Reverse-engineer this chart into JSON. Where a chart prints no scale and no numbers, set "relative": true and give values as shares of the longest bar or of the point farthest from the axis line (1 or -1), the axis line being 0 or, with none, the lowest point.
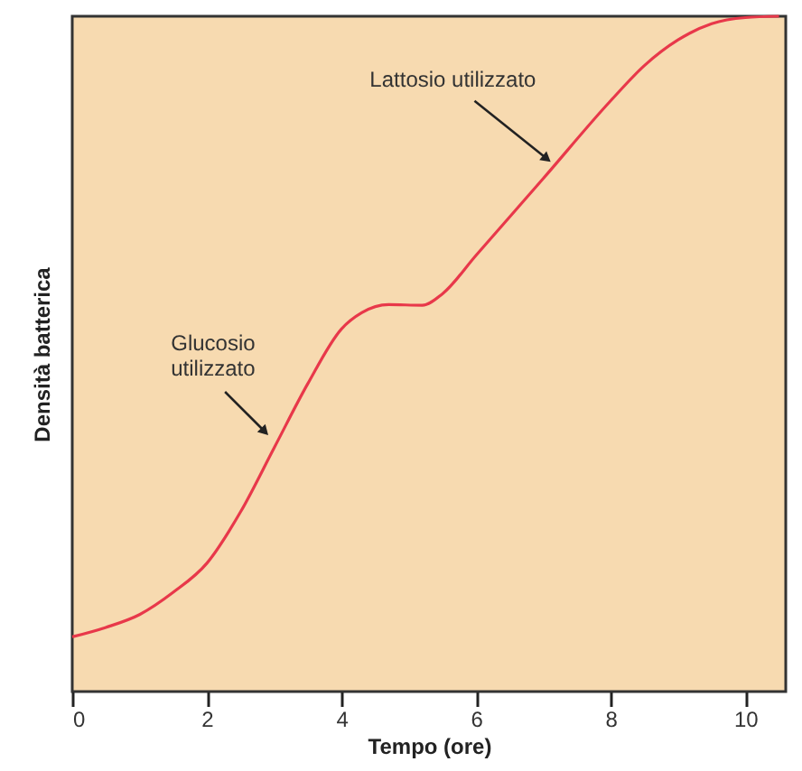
{
  "chart_data": {
    "type": "line",
    "relative": true,
    "xlabel": "Tempo (ore)",
    "ylabel": "Densità batterica",
    "x": [
      0,
      0.5,
      1,
      1.5,
      2,
      2.5,
      3,
      3.5,
      4,
      4.3,
      4.7,
      5.2,
      5.5,
      6,
      7,
      8,
      8.5,
      9,
      9.5,
      10,
      10.5
    ],
    "series": [
      {
        "color": "#e8384a",
        "values": [
          0.081,
          0.095,
          0.114,
          0.147,
          0.19,
          0.266,
          0.361,
          0.456,
          0.537,
          0.561,
          0.573,
          0.572,
          0.589,
          0.646,
          0.76,
          0.875,
          0.927,
          0.965,
          0.989,
          0.998,
          1.0
        ]
      }
    ],
    "xlim": [
      0,
      10.6
    ],
    "xticks": [
      0,
      2,
      4,
      6,
      8,
      10
    ],
    "annotations": [
      {
        "text": "Glucosio\nutilizzato",
        "x": 2.86,
        "y": 0.385
      },
      {
        "text": "Lattosio utilizzato",
        "x": 7.05,
        "y": 0.789
      }
    ],
    "grid": false,
    "marker": "none",
    "line_style": "solid"
  }
}
